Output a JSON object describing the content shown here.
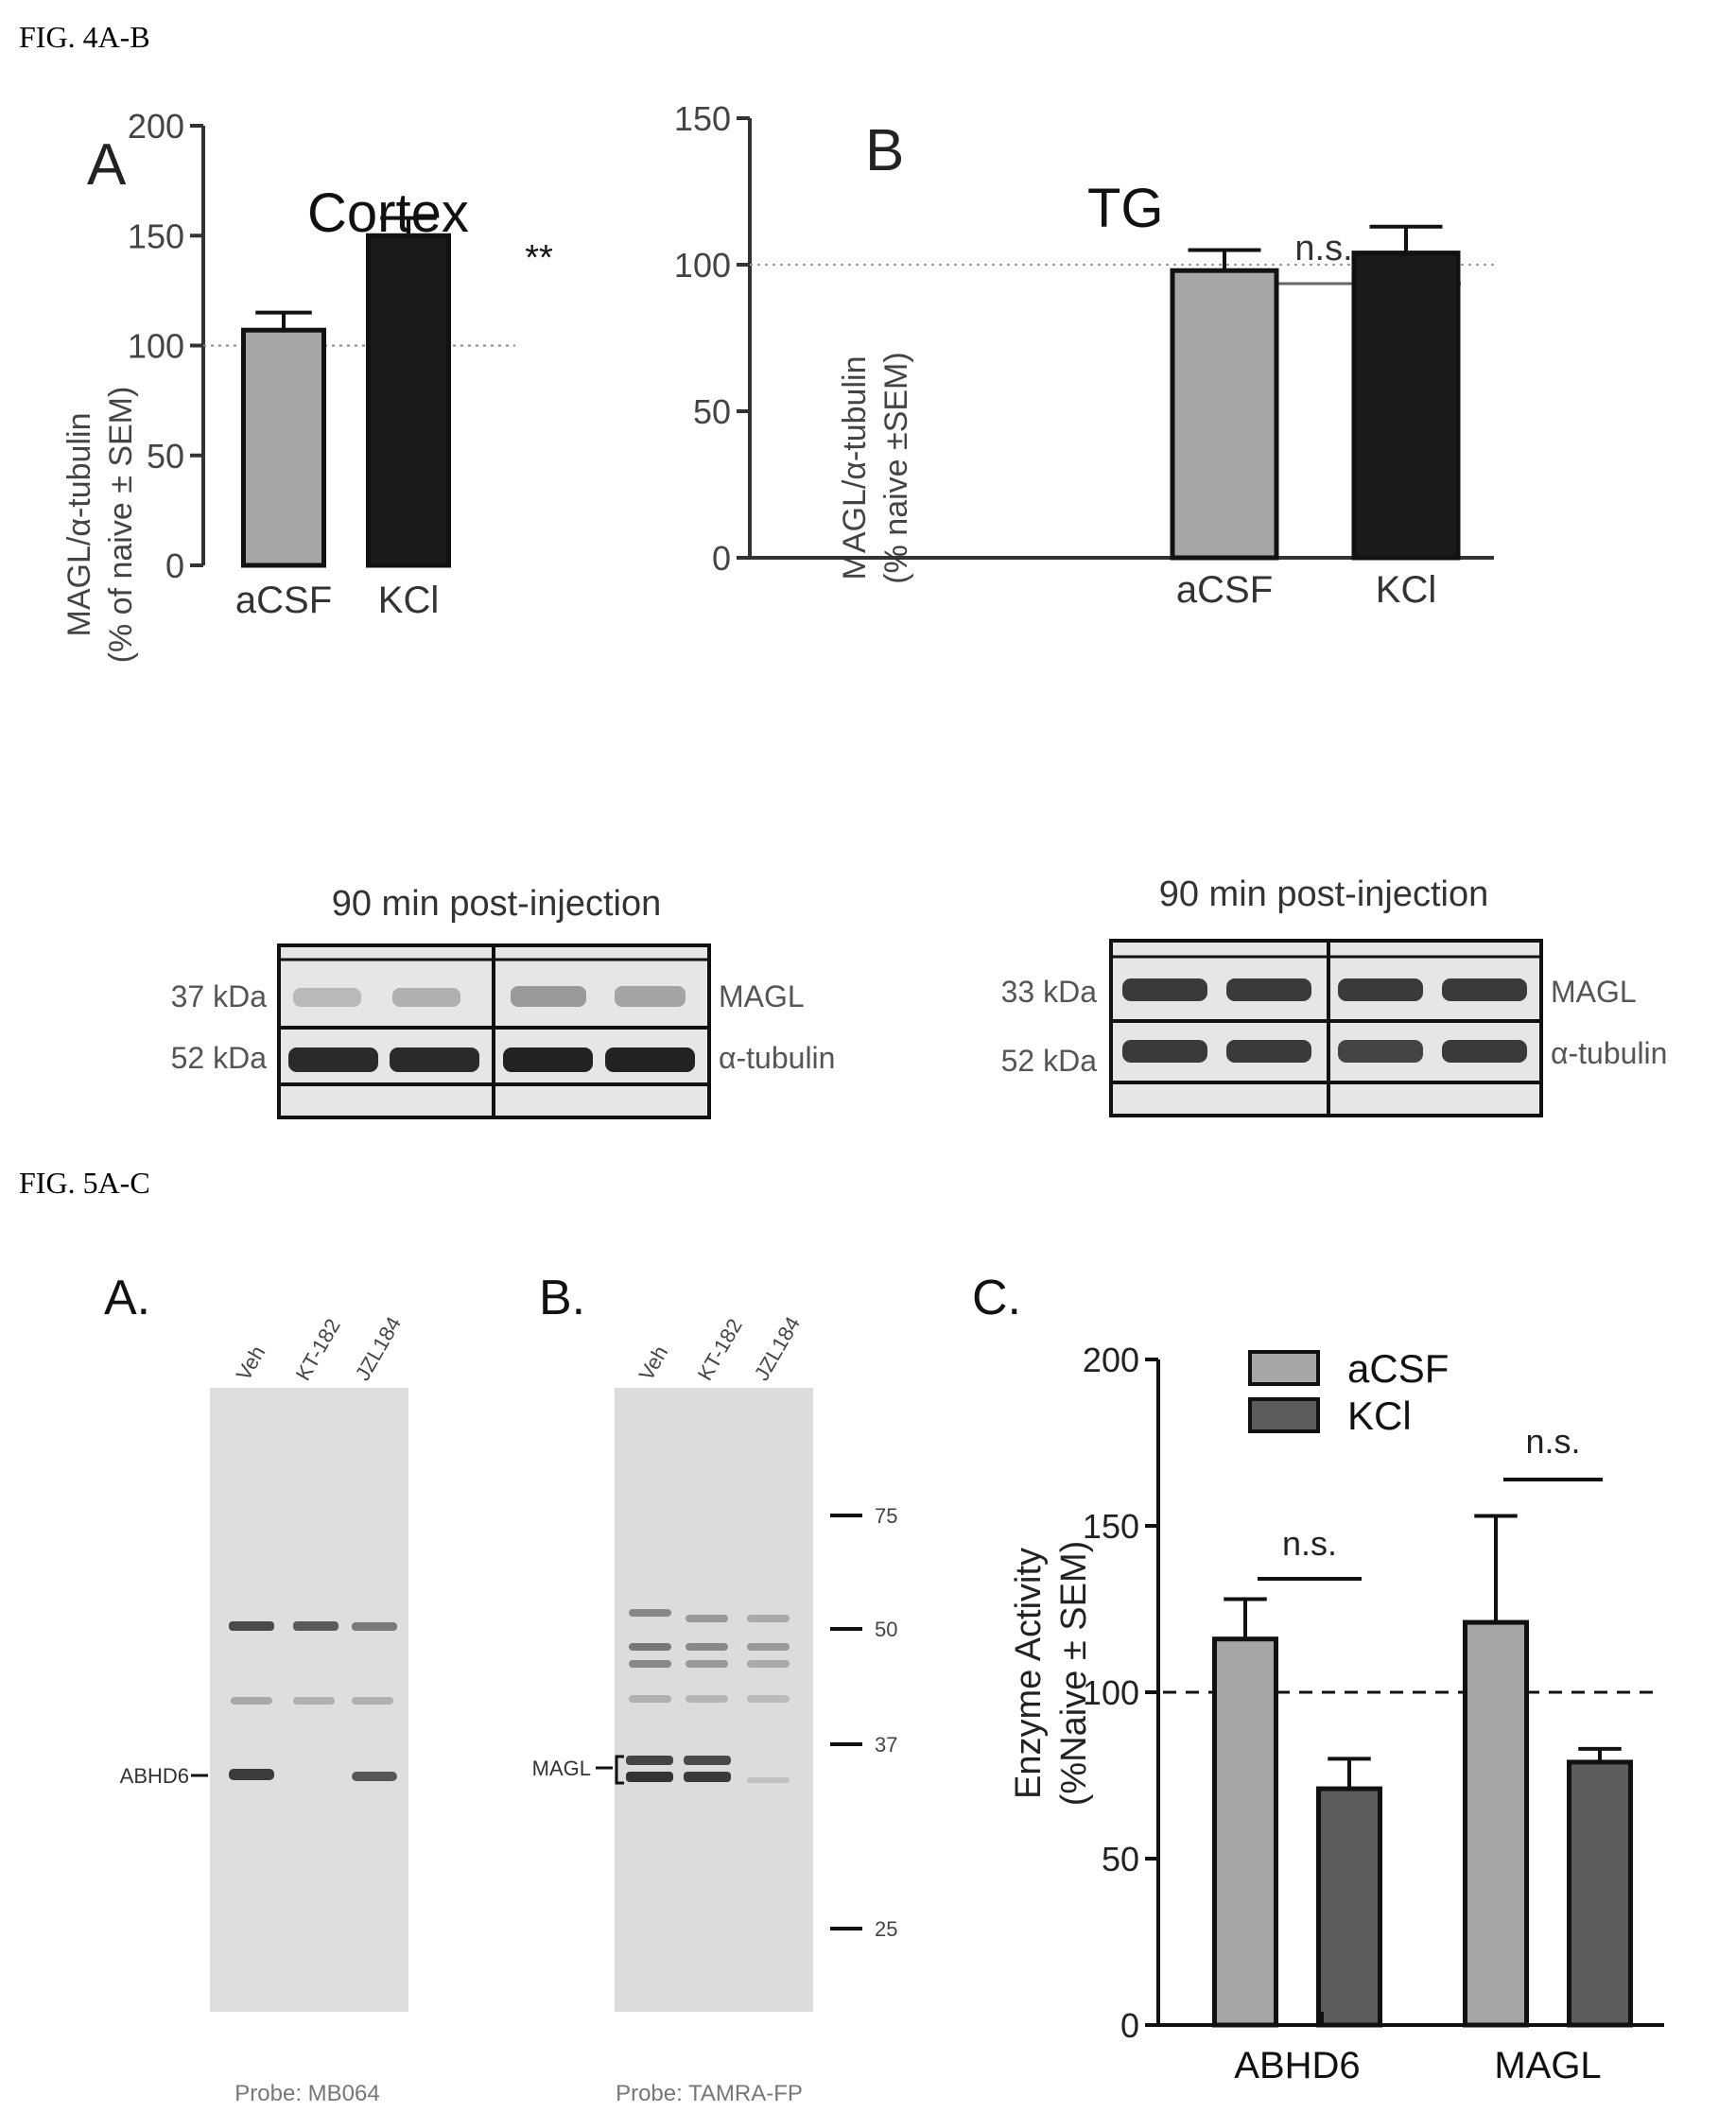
{
  "fig4": {
    "heading": "FIG. 4A-B",
    "panel_a": {
      "letter": "A",
      "title": "Cortex",
      "ylabel_line1": "MAGL/α-tubulin",
      "ylabel_line2": "(% of naive ± SEM)",
      "xlabel": "90 min post-injection",
      "significance": "**",
      "blot": {
        "band1_kda": "37 kDa",
        "band1_label": "MAGL",
        "band2_kda": "52 kDa",
        "band2_label": "α-tubulin"
      }
    },
    "panel_b": {
      "letter": "B",
      "title": "TG",
      "ylabel_line1": "MAGL/α-tubulin",
      "ylabel_line2": "(% naive ±SEM)",
      "xlabel": "90 min post-injection",
      "significance": "n.s.",
      "blot": {
        "band1_kda": "33 kDa",
        "band1_label": "MAGL",
        "band2_kda": "52 kDa",
        "band2_label": "α-tubulin"
      }
    }
  },
  "fig5": {
    "heading": "FIG. 5A-C",
    "panel_a": {
      "letter": "A.",
      "lanes": [
        "Veh",
        "KT-182",
        "JZL184"
      ],
      "band_label": "ABHD6",
      "probe": "Probe: MB064"
    },
    "panel_b": {
      "letter": "B.",
      "lanes": [
        "Veh",
        "KT-182",
        "JZL184"
      ],
      "band_label": "MAGL",
      "markers": [
        "75",
        "50",
        "37",
        "25"
      ],
      "probe": "Probe: TAMRA-FP"
    },
    "panel_c": {
      "letter": "C.",
      "ylabel_line1": "Enzyme Activity",
      "ylabel_line2": "(%Naive ± SEM)",
      "significance": [
        "n.s.",
        "n.s."
      ]
    }
  },
  "chart_data": [
    {
      "type": "bar",
      "categories": [
        "aCSF",
        "KCl"
      ],
      "values": [
        107,
        150
      ],
      "errors": [
        8,
        8
      ],
      "colors": [
        "#a6a6a6",
        "#1a1a1a"
      ],
      "ylim": [
        0,
        200
      ],
      "yticks": [
        0,
        50,
        100,
        150,
        200
      ],
      "reference_line": 100
    },
    {
      "type": "bar",
      "categories": [
        "aCSF",
        "KCl"
      ],
      "values": [
        98,
        104
      ],
      "errors": [
        7,
        9
      ],
      "colors": [
        "#a6a6a6",
        "#1a1a1a"
      ],
      "ylim": [
        0,
        150
      ],
      "yticks": [
        0,
        50,
        100,
        150
      ],
      "reference_line": 100
    },
    {
      "type": "bar",
      "categories": [
        "ABHD6",
        "MAGL"
      ],
      "series": [
        {
          "name": "aCSF",
          "values": [
            116,
            121
          ],
          "errors": [
            12,
            32
          ],
          "color": "#a6a6a6"
        },
        {
          "name": "KCl",
          "values": [
            71,
            79
          ],
          "errors": [
            9,
            4
          ],
          "color": "#5c5c5c"
        }
      ],
      "ylim": [
        0,
        200
      ],
      "yticks": [
        0,
        50,
        100,
        150,
        200
      ],
      "reference_line": 100,
      "legend": "top-left"
    }
  ]
}
